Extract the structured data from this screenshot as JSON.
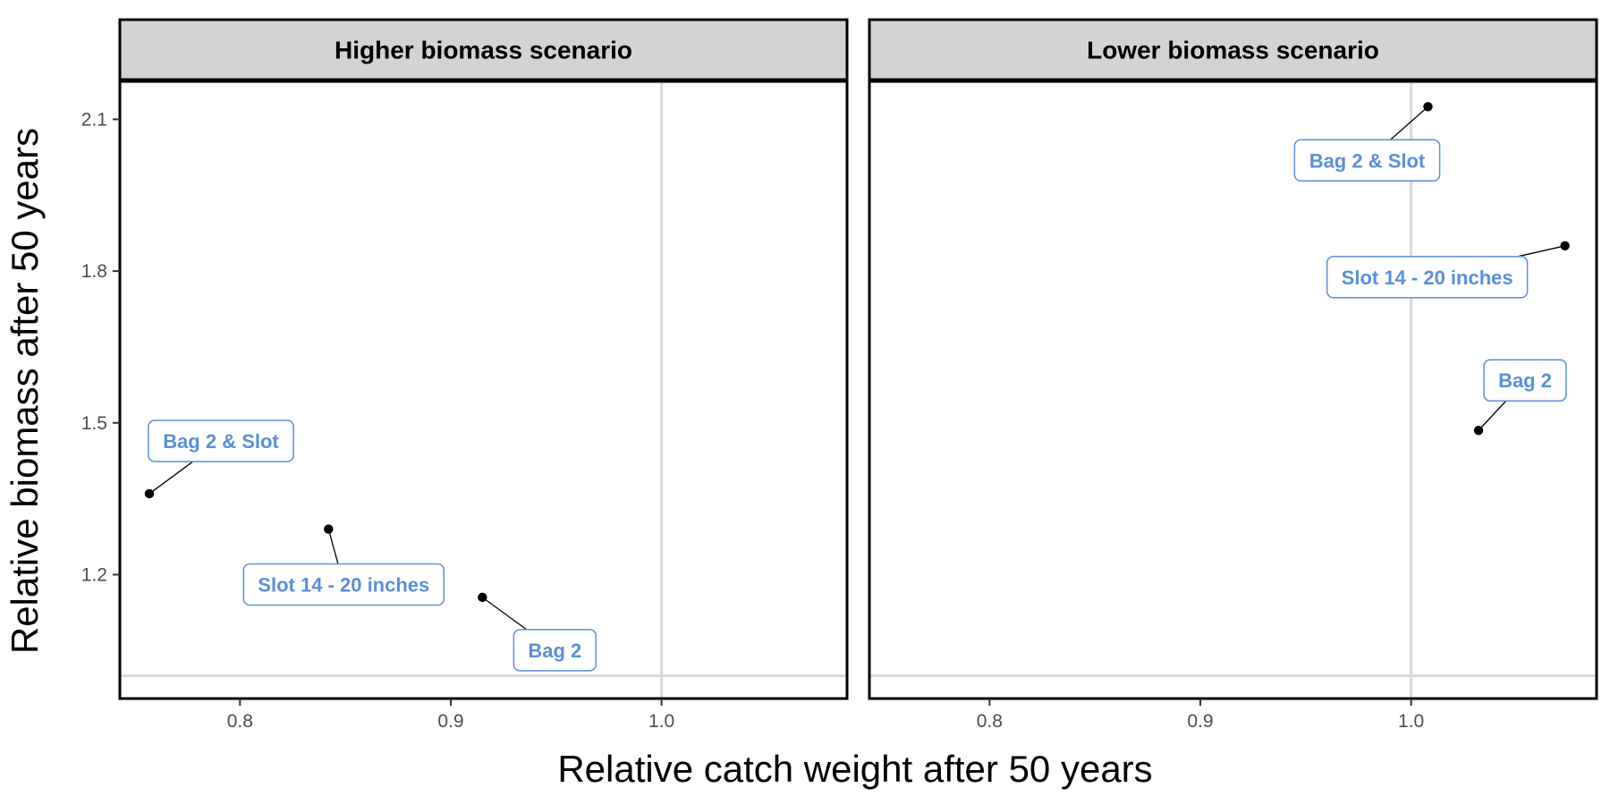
{
  "chart_data": {
    "type": "scatter",
    "xlabel": "Relative catch weight after 50 years",
    "ylabel": "Relative biomass after 50 years",
    "xlim": [
      0.743,
      1.088
    ],
    "ylim": [
      0.955,
      2.175
    ],
    "x_ticks": [
      0.8,
      0.9,
      1.0
    ],
    "x_tick_labels": [
      "0.8",
      "0.9",
      "1.0"
    ],
    "y_ticks": [
      1.2,
      1.5,
      1.8,
      2.1
    ],
    "y_tick_labels": [
      "1.2",
      "1.5",
      "1.8",
      "2.1"
    ],
    "reference_lines": {
      "x": 1.0,
      "y": 1.0
    },
    "grid": false,
    "colors": {
      "label": "#5b8fd9",
      "point": "#000000",
      "reference": "#d9d9d9",
      "strip": "#d3d3d3"
    },
    "panels": [
      {
        "title": "Higher biomass scenario",
        "points": [
          {
            "label": "Bag 2 & Slot",
            "x": 0.757,
            "y": 1.36
          },
          {
            "label": "Slot 14 - 20 inches",
            "x": 0.842,
            "y": 1.29
          },
          {
            "label": "Bag 2",
            "x": 0.915,
            "y": 1.155
          }
        ]
      },
      {
        "title": "Lower biomass scenario",
        "points": [
          {
            "label": "Bag 2 & Slot",
            "x": 1.008,
            "y": 2.125
          },
          {
            "label": "Slot 14 - 20 inches",
            "x": 1.073,
            "y": 1.85
          },
          {
            "label": "Bag 2",
            "x": 1.032,
            "y": 1.485
          }
        ]
      }
    ]
  }
}
